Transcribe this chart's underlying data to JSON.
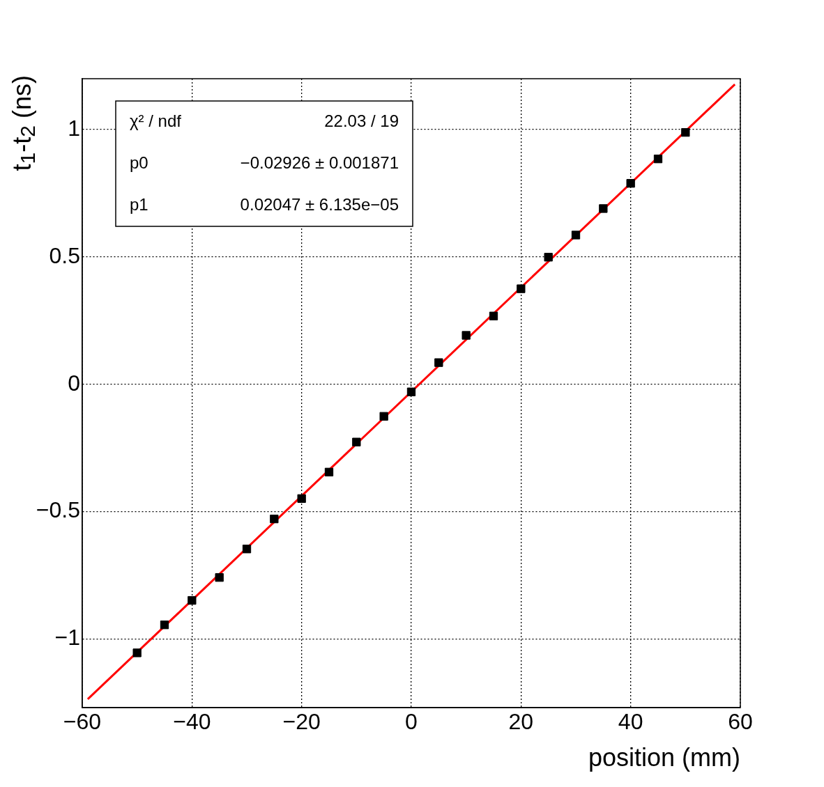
{
  "chart_data": {
    "type": "scatter",
    "xlabel": "position (mm)",
    "ylabel": "t$_{1}$-t$_{2}$ (ns)",
    "x": [
      -50,
      -45,
      -40,
      -35,
      -30,
      -25,
      -20,
      -15,
      -10,
      -5,
      0,
      5,
      10,
      15,
      20,
      25,
      30,
      35,
      40,
      45,
      50
    ],
    "series": [
      {
        "color": "#000000",
        "values": [
          -1.055,
          -0.945,
          -0.849,
          -0.759,
          -0.647,
          -0.529,
          -0.449,
          -0.345,
          -0.227,
          -0.126,
          -0.03,
          0.085,
          0.192,
          0.268,
          0.375,
          0.499,
          0.586,
          0.69,
          0.789,
          0.885,
          0.989
        ]
      },
      {
        "type": "line",
        "marker": "none",
        "color": "#ff0000",
        "x": [
          -59,
          59
        ],
        "values": [
          -1.237,
          1.178
        ]
      }
    ],
    "xlim": [
      -60,
      60
    ],
    "xticks": [
      {
        "value": -60,
        "label": "−60"
      },
      {
        "value": -40,
        "label": "−40"
      },
      {
        "value": -20,
        "label": "−20"
      },
      0,
      20,
      40,
      60
    ],
    "ylim": [
      -1.27,
      1.2
    ],
    "yticks": [
      {
        "value": -1,
        "label": "−1"
      },
      {
        "value": -0.5,
        "label": "−0.5"
      },
      0,
      0.5,
      1
    ],
    "grid": true,
    "legend": false,
    "marker": "square",
    "annotations": [
      "χ² / ndf",
      "22.03 / 19",
      "p0",
      "−0.02926 ± 0.001871",
      "p1",
      "0.02047 ± 6.135e−05"
    ]
  }
}
